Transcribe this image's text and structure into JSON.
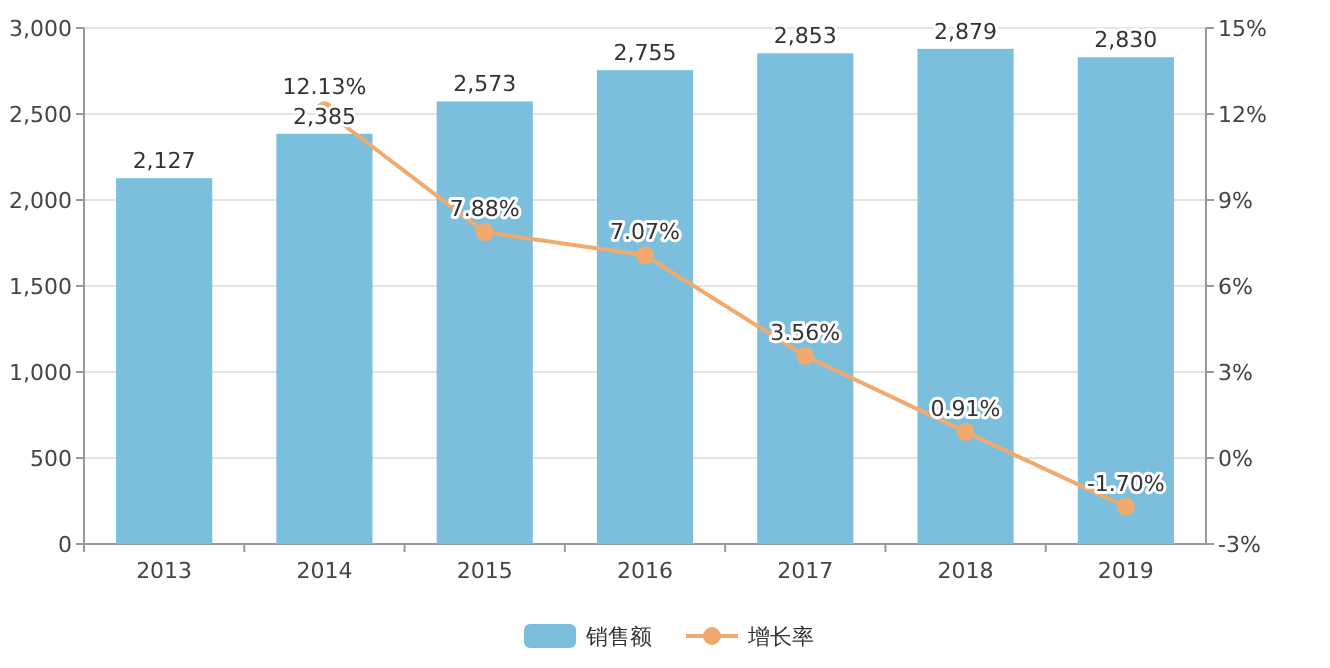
{
  "chart_data": {
    "type": "bar",
    "categories": [
      "2013",
      "2014",
      "2015",
      "2016",
      "2017",
      "2018",
      "2019"
    ],
    "series": [
      {
        "name": "销售额",
        "color": "#7bbfdc",
        "values": [
          2127,
          2385,
          2573,
          2755,
          2853,
          2879,
          2830
        ],
        "value_labels": [
          "2,127",
          "2,385",
          "2,573",
          "2,755",
          "2,853",
          "2,879",
          "2,830"
        ]
      },
      {
        "name": "增长率",
        "type": "line",
        "axis": "y2",
        "color": "#f0aa70",
        "marker": "circle",
        "values": [
          null,
          12.13,
          7.88,
          7.07,
          3.56,
          0.91,
          -1.7
        ],
        "value_labels": [
          null,
          "12.13%",
          "7.88%",
          "7.07%",
          "3.56%",
          "0.91%",
          "-1.70%"
        ]
      }
    ],
    "ylim": [
      0,
      3000
    ],
    "yticks": [
      0,
      500,
      {
        "value": 1000,
        "label": "1,000"
      },
      {
        "value": 1500,
        "label": "1,500"
      },
      {
        "value": 2000,
        "label": "2,000"
      },
      {
        "value": 2500,
        "label": "2,500"
      },
      {
        "value": 3000,
        "label": "3,000"
      }
    ],
    "y2lim": [
      -3,
      15
    ],
    "y2ticks": [
      {
        "value": -3,
        "label": "-3%"
      },
      {
        "value": 0,
        "label": "0%"
      },
      {
        "value": 3,
        "label": "3%"
      },
      {
        "value": 6,
        "label": "6%"
      },
      {
        "value": 9,
        "label": "9%"
      },
      {
        "value": 12,
        "label": "12%"
      },
      {
        "value": 15,
        "label": "15%"
      }
    ],
    "grid": "y",
    "legend": "bottom"
  }
}
